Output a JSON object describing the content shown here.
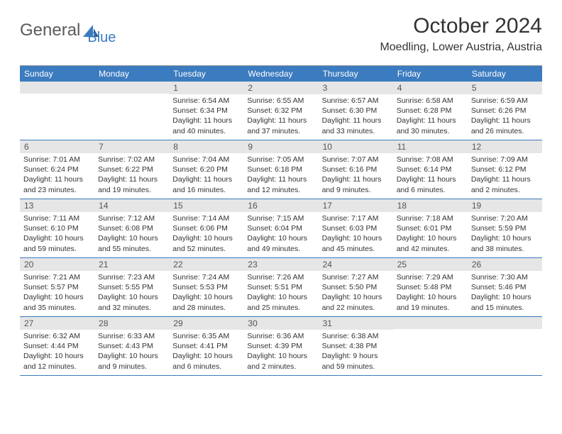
{
  "logo": {
    "text1": "General",
    "text2": "Blue"
  },
  "title": "October 2024",
  "location": "Moedling, Lower Austria, Austria",
  "colors": {
    "header_bg": "#3b7bbf",
    "daynum_bg": "#e6e6e6",
    "border": "#3b7bbf",
    "text": "#333333",
    "logo_gray": "#5a5a5a",
    "logo_blue": "#3b7bbf"
  },
  "day_names": [
    "Sunday",
    "Monday",
    "Tuesday",
    "Wednesday",
    "Thursday",
    "Friday",
    "Saturday"
  ],
  "weeks": [
    [
      {
        "day": "",
        "sunrise": "",
        "sunset": "",
        "daylight": ""
      },
      {
        "day": "",
        "sunrise": "",
        "sunset": "",
        "daylight": ""
      },
      {
        "day": "1",
        "sunrise": "Sunrise: 6:54 AM",
        "sunset": "Sunset: 6:34 PM",
        "daylight": "Daylight: 11 hours and 40 minutes."
      },
      {
        "day": "2",
        "sunrise": "Sunrise: 6:55 AM",
        "sunset": "Sunset: 6:32 PM",
        "daylight": "Daylight: 11 hours and 37 minutes."
      },
      {
        "day": "3",
        "sunrise": "Sunrise: 6:57 AM",
        "sunset": "Sunset: 6:30 PM",
        "daylight": "Daylight: 11 hours and 33 minutes."
      },
      {
        "day": "4",
        "sunrise": "Sunrise: 6:58 AM",
        "sunset": "Sunset: 6:28 PM",
        "daylight": "Daylight: 11 hours and 30 minutes."
      },
      {
        "day": "5",
        "sunrise": "Sunrise: 6:59 AM",
        "sunset": "Sunset: 6:26 PM",
        "daylight": "Daylight: 11 hours and 26 minutes."
      }
    ],
    [
      {
        "day": "6",
        "sunrise": "Sunrise: 7:01 AM",
        "sunset": "Sunset: 6:24 PM",
        "daylight": "Daylight: 11 hours and 23 minutes."
      },
      {
        "day": "7",
        "sunrise": "Sunrise: 7:02 AM",
        "sunset": "Sunset: 6:22 PM",
        "daylight": "Daylight: 11 hours and 19 minutes."
      },
      {
        "day": "8",
        "sunrise": "Sunrise: 7:04 AM",
        "sunset": "Sunset: 6:20 PM",
        "daylight": "Daylight: 11 hours and 16 minutes."
      },
      {
        "day": "9",
        "sunrise": "Sunrise: 7:05 AM",
        "sunset": "Sunset: 6:18 PM",
        "daylight": "Daylight: 11 hours and 12 minutes."
      },
      {
        "day": "10",
        "sunrise": "Sunrise: 7:07 AM",
        "sunset": "Sunset: 6:16 PM",
        "daylight": "Daylight: 11 hours and 9 minutes."
      },
      {
        "day": "11",
        "sunrise": "Sunrise: 7:08 AM",
        "sunset": "Sunset: 6:14 PM",
        "daylight": "Daylight: 11 hours and 6 minutes."
      },
      {
        "day": "12",
        "sunrise": "Sunrise: 7:09 AM",
        "sunset": "Sunset: 6:12 PM",
        "daylight": "Daylight: 11 hours and 2 minutes."
      }
    ],
    [
      {
        "day": "13",
        "sunrise": "Sunrise: 7:11 AM",
        "sunset": "Sunset: 6:10 PM",
        "daylight": "Daylight: 10 hours and 59 minutes."
      },
      {
        "day": "14",
        "sunrise": "Sunrise: 7:12 AM",
        "sunset": "Sunset: 6:08 PM",
        "daylight": "Daylight: 10 hours and 55 minutes."
      },
      {
        "day": "15",
        "sunrise": "Sunrise: 7:14 AM",
        "sunset": "Sunset: 6:06 PM",
        "daylight": "Daylight: 10 hours and 52 minutes."
      },
      {
        "day": "16",
        "sunrise": "Sunrise: 7:15 AM",
        "sunset": "Sunset: 6:04 PM",
        "daylight": "Daylight: 10 hours and 49 minutes."
      },
      {
        "day": "17",
        "sunrise": "Sunrise: 7:17 AM",
        "sunset": "Sunset: 6:03 PM",
        "daylight": "Daylight: 10 hours and 45 minutes."
      },
      {
        "day": "18",
        "sunrise": "Sunrise: 7:18 AM",
        "sunset": "Sunset: 6:01 PM",
        "daylight": "Daylight: 10 hours and 42 minutes."
      },
      {
        "day": "19",
        "sunrise": "Sunrise: 7:20 AM",
        "sunset": "Sunset: 5:59 PM",
        "daylight": "Daylight: 10 hours and 38 minutes."
      }
    ],
    [
      {
        "day": "20",
        "sunrise": "Sunrise: 7:21 AM",
        "sunset": "Sunset: 5:57 PM",
        "daylight": "Daylight: 10 hours and 35 minutes."
      },
      {
        "day": "21",
        "sunrise": "Sunrise: 7:23 AM",
        "sunset": "Sunset: 5:55 PM",
        "daylight": "Daylight: 10 hours and 32 minutes."
      },
      {
        "day": "22",
        "sunrise": "Sunrise: 7:24 AM",
        "sunset": "Sunset: 5:53 PM",
        "daylight": "Daylight: 10 hours and 28 minutes."
      },
      {
        "day": "23",
        "sunrise": "Sunrise: 7:26 AM",
        "sunset": "Sunset: 5:51 PM",
        "daylight": "Daylight: 10 hours and 25 minutes."
      },
      {
        "day": "24",
        "sunrise": "Sunrise: 7:27 AM",
        "sunset": "Sunset: 5:50 PM",
        "daylight": "Daylight: 10 hours and 22 minutes."
      },
      {
        "day": "25",
        "sunrise": "Sunrise: 7:29 AM",
        "sunset": "Sunset: 5:48 PM",
        "daylight": "Daylight: 10 hours and 19 minutes."
      },
      {
        "day": "26",
        "sunrise": "Sunrise: 7:30 AM",
        "sunset": "Sunset: 5:46 PM",
        "daylight": "Daylight: 10 hours and 15 minutes."
      }
    ],
    [
      {
        "day": "27",
        "sunrise": "Sunrise: 6:32 AM",
        "sunset": "Sunset: 4:44 PM",
        "daylight": "Daylight: 10 hours and 12 minutes."
      },
      {
        "day": "28",
        "sunrise": "Sunrise: 6:33 AM",
        "sunset": "Sunset: 4:43 PM",
        "daylight": "Daylight: 10 hours and 9 minutes."
      },
      {
        "day": "29",
        "sunrise": "Sunrise: 6:35 AM",
        "sunset": "Sunset: 4:41 PM",
        "daylight": "Daylight: 10 hours and 6 minutes."
      },
      {
        "day": "30",
        "sunrise": "Sunrise: 6:36 AM",
        "sunset": "Sunset: 4:39 PM",
        "daylight": "Daylight: 10 hours and 2 minutes."
      },
      {
        "day": "31",
        "sunrise": "Sunrise: 6:38 AM",
        "sunset": "Sunset: 4:38 PM",
        "daylight": "Daylight: 9 hours and 59 minutes."
      },
      {
        "day": "",
        "sunrise": "",
        "sunset": "",
        "daylight": ""
      },
      {
        "day": "",
        "sunrise": "",
        "sunset": "",
        "daylight": ""
      }
    ]
  ]
}
